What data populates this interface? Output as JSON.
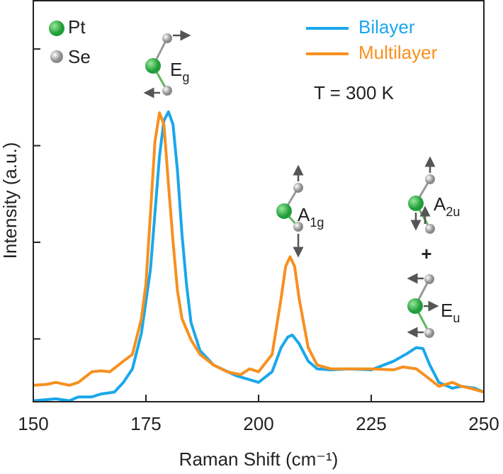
{
  "chart_data": {
    "type": "line",
    "xlabel": "Raman Shift (cm⁻¹)",
    "ylabel": "Intensity (a.u.)",
    "xlim": [
      150,
      250
    ],
    "xticks": [
      150,
      175,
      200,
      225,
      250
    ],
    "ylim": [
      -0.65,
      3.5
    ],
    "yticks": [
      0,
      1,
      2,
      3
    ],
    "legend": "upper right",
    "series": [
      {
        "name": "Bilayer",
        "color": "#1aa7ec",
        "x": [
          150,
          155,
          158,
          160,
          163,
          165,
          168,
          170,
          172,
          174,
          176,
          177,
          178,
          179,
          180,
          181,
          182,
          183,
          184,
          185,
          187,
          190,
          195,
          200,
          203,
          205,
          206.5,
          207.5,
          209,
          211,
          213,
          216,
          220,
          225,
          230,
          233,
          235,
          236.5,
          238,
          240,
          243,
          245,
          248,
          250
        ],
        "values": [
          -0.64,
          -0.62,
          -0.64,
          -0.6,
          -0.6,
          -0.57,
          -0.55,
          -0.45,
          -0.31,
          0.06,
          0.72,
          1.3,
          1.89,
          2.26,
          2.35,
          2.22,
          1.74,
          1.08,
          0.57,
          0.17,
          -0.12,
          -0.27,
          -0.38,
          -0.45,
          -0.34,
          -0.09,
          0.02,
          0.04,
          -0.05,
          -0.23,
          -0.31,
          -0.32,
          -0.31,
          -0.32,
          -0.23,
          -0.15,
          -0.09,
          -0.1,
          -0.27,
          -0.45,
          -0.51,
          -0.49,
          -0.51,
          -0.55
        ]
      },
      {
        "name": "Multilayer",
        "color": "#f7901e",
        "x": [
          150,
          153,
          155,
          158,
          160,
          163,
          165,
          167,
          170,
          172,
          174,
          175,
          176,
          177,
          178,
          179,
          180,
          181,
          182,
          183,
          185,
          187,
          190,
          193,
          196,
          198,
          200,
          203,
          205,
          206,
          207,
          208,
          209,
          211,
          213,
          216,
          220,
          225,
          230,
          232,
          235,
          237,
          240,
          243,
          245,
          247,
          250
        ],
        "values": [
          -0.48,
          -0.47,
          -0.45,
          -0.48,
          -0.45,
          -0.34,
          -0.33,
          -0.34,
          -0.23,
          -0.16,
          0.21,
          0.57,
          1.3,
          2.04,
          2.34,
          2.22,
          1.6,
          1.01,
          0.5,
          0.21,
          -0.01,
          -0.16,
          -0.27,
          -0.34,
          -0.37,
          -0.31,
          -0.34,
          -0.16,
          0.42,
          0.75,
          0.85,
          0.75,
          0.42,
          -0.09,
          -0.27,
          -0.31,
          -0.31,
          -0.31,
          -0.32,
          -0.29,
          -0.31,
          -0.38,
          -0.49,
          -0.45,
          -0.49,
          -0.51,
          -0.55
        ]
      }
    ],
    "annotations": [
      {
        "text": "Pt"
      },
      {
        "text": "Se"
      },
      {
        "text": "E",
        "sub": "g"
      },
      {
        "text": "A",
        "sub": "1g"
      },
      {
        "text": "A",
        "sub": "2u"
      },
      {
        "text": "+"
      },
      {
        "text": "E",
        "sub": "u"
      },
      {
        "text": "T = 300 K"
      }
    ]
  }
}
